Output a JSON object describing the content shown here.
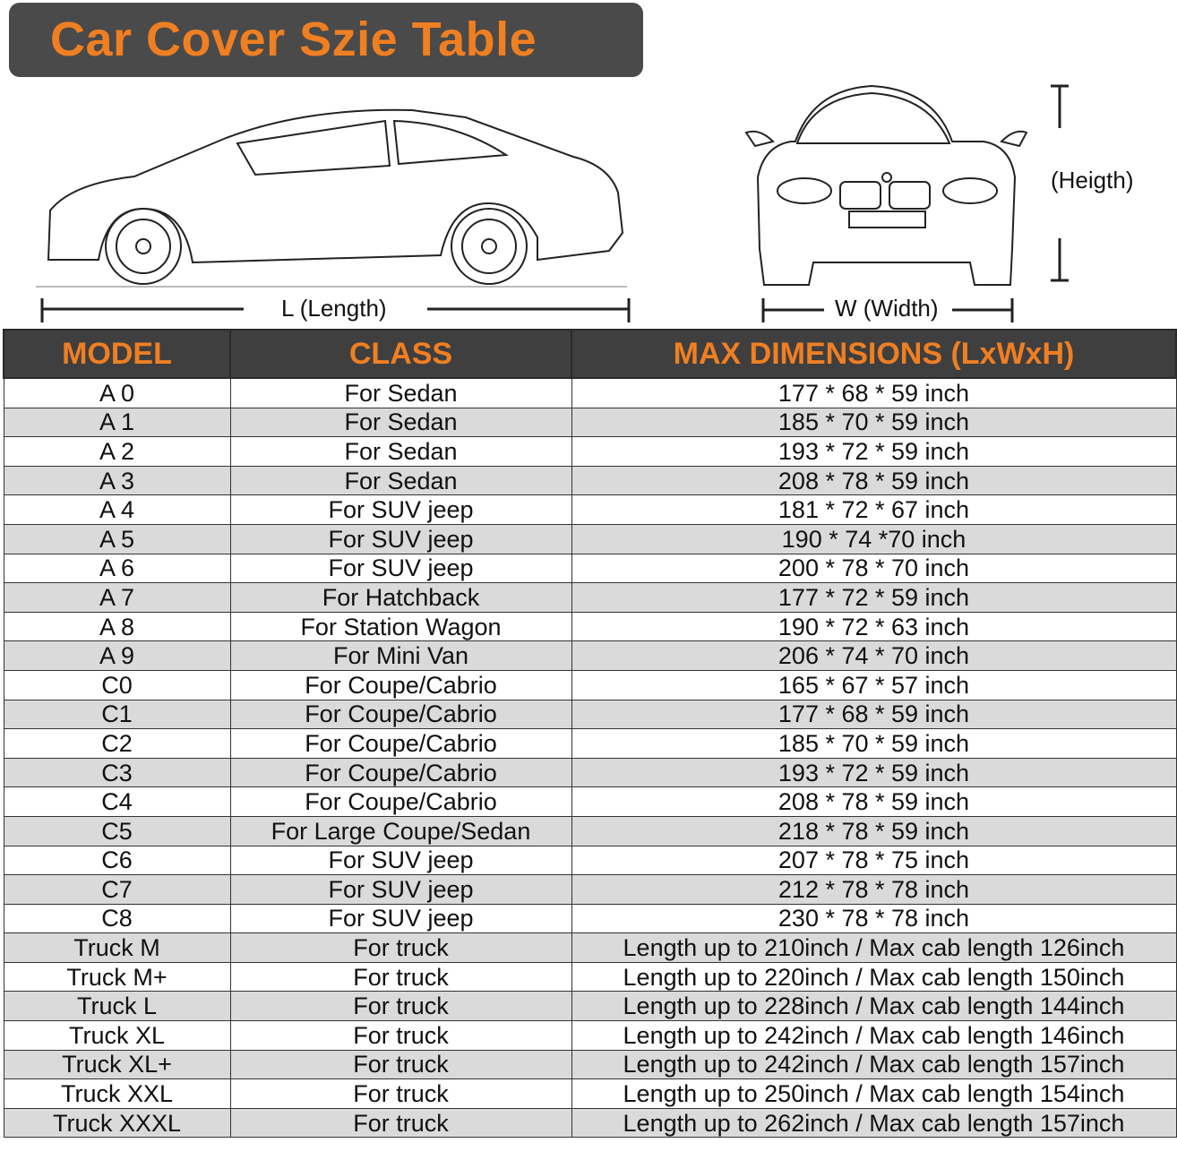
{
  "title": "Car Cover Szie Table",
  "diagram": {
    "length_label": "L (Length)",
    "width_label": "W (Width)",
    "height_label": "(Heigth)"
  },
  "table": {
    "headers": [
      "MODEL",
      "CLASS",
      "MAX DIMENSIONS (LxWxH)"
    ],
    "rows": [
      [
        "A 0",
        "For Sedan",
        "177 * 68 * 59 inch"
      ],
      [
        "A 1",
        "For Sedan",
        "185 * 70 * 59 inch"
      ],
      [
        "A 2",
        "For Sedan",
        "193 * 72 * 59 inch"
      ],
      [
        "A 3",
        "For Sedan",
        "208 * 78 * 59 inch"
      ],
      [
        "A 4",
        "For SUV jeep",
        "181 * 72 * 67 inch"
      ],
      [
        "A 5",
        "For SUV jeep",
        "190 * 74  *70 inch"
      ],
      [
        "A 6",
        "For SUV jeep",
        "200 * 78 * 70 inch"
      ],
      [
        "A 7",
        "For Hatchback",
        "177 * 72 * 59 inch"
      ],
      [
        "A 8",
        "For Station Wagon",
        "190 * 72 * 63 inch"
      ],
      [
        "A 9",
        "For Mini Van",
        "206 * 74 * 70 inch"
      ],
      [
        "C0",
        "For Coupe/Cabrio",
        "165 * 67 * 57 inch"
      ],
      [
        "C1",
        "For Coupe/Cabrio",
        "177 * 68 * 59 inch"
      ],
      [
        "C2",
        "For Coupe/Cabrio",
        "185 * 70 * 59 inch"
      ],
      [
        "C3",
        "For Coupe/Cabrio",
        "193 * 72 * 59 inch"
      ],
      [
        "C4",
        "For Coupe/Cabrio",
        "208 * 78 * 59 inch"
      ],
      [
        "C5",
        "For Large Coupe/Sedan",
        "218 * 78 * 59 inch"
      ],
      [
        "C6",
        "For SUV jeep",
        "207 * 78 * 75 inch"
      ],
      [
        "C7",
        "For SUV jeep",
        "212 * 78 * 78 inch"
      ],
      [
        "C8",
        "For SUV jeep",
        "230 * 78 * 78 inch"
      ],
      [
        "Truck M",
        "For truck",
        "Length up to 210inch / Max cab length 126inch"
      ],
      [
        "Truck M+",
        "For truck",
        "Length up to 220inch / Max cab length 150inch"
      ],
      [
        "Truck L",
        "For truck",
        "Length up to 228inch / Max cab length 144inch"
      ],
      [
        "Truck XL",
        "For truck",
        "Length up to 242inch / Max cab length 146inch"
      ],
      [
        "Truck XL+",
        "For truck",
        "Length up to 242inch / Max cab length 157inch"
      ],
      [
        "Truck XXL",
        "For truck",
        "Length up to 250inch / Max cab length 154inch"
      ],
      [
        "Truck XXXL",
        "For truck",
        "Length up to 262inch / Max cab length 157inch"
      ]
    ]
  },
  "colors": {
    "banner": "#4a4a4a",
    "accent": "#f07f22",
    "header": "#3f3f3f",
    "alt_row": "#dadada"
  }
}
